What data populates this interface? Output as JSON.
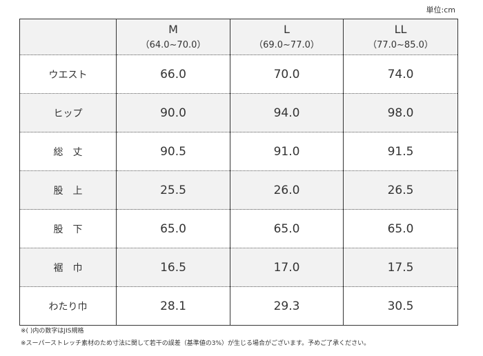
{
  "unit": "単位:cm",
  "table": {
    "header": [
      {
        "size": "M",
        "range": "（64.0~70.0）"
      },
      {
        "size": "L",
        "range": "（69.0~77.0）"
      },
      {
        "size": "LL",
        "range": "（77.0~85.0）"
      }
    ],
    "rows": [
      [
        "ウエスト",
        "66.0",
        "70.0",
        "74.0"
      ],
      [
        "ヒップ",
        "90.0",
        "94.0",
        "98.0"
      ],
      [
        "総　丈",
        "90.5",
        "91.0",
        "91.5"
      ],
      [
        "股　上",
        "25.5",
        "26.0",
        "26.5"
      ],
      [
        "股　下",
        "65.0",
        "65.0",
        "65.0"
      ],
      [
        "裾　巾",
        "16.5",
        "17.0",
        "17.5"
      ],
      [
        "わたり巾",
        "28.1",
        "29.3",
        "30.5"
      ]
    ]
  },
  "notes": [
    "※( )内の数字はJIS規格",
    "※スーパーストレッチ素材のため寸法に関して若干の誤差（基準値の3%）が生じる場合がございます。予めご了承ください。"
  ]
}
